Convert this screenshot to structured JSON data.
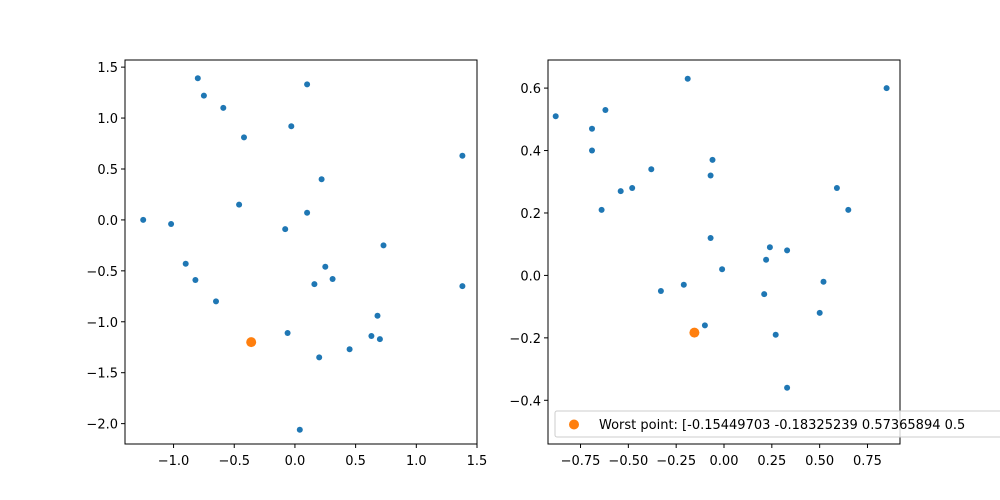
{
  "chart_data": [
    {
      "type": "scatter",
      "xlim": [
        -1.4,
        1.5
      ],
      "ylim": [
        -2.2,
        1.57
      ],
      "x_ticks": [
        -1.0,
        -0.5,
        0.0,
        0.5,
        1.0,
        1.5
      ],
      "x_tick_labels": [
        "−1.0",
        "−0.5",
        "0.0",
        "0.5",
        "1.0",
        "1.5"
      ],
      "y_ticks": [
        -2.0,
        -1.5,
        -1.0,
        -0.5,
        0.0,
        0.5,
        1.0,
        1.5
      ],
      "y_tick_labels": [
        "−2.0",
        "−1.5",
        "−1.0",
        "−0.5",
        "0.0",
        "0.5",
        "1.0",
        "1.5"
      ],
      "grid": false,
      "series": [
        {
          "color": "#1f77b4",
          "marker_size": 3,
          "points": [
            [
              -0.8,
              1.39
            ],
            [
              -0.75,
              1.22
            ],
            [
              -0.59,
              1.1
            ],
            [
              0.1,
              1.33
            ],
            [
              -0.42,
              0.81
            ],
            [
              -0.03,
              0.92
            ],
            [
              1.38,
              0.63
            ],
            [
              0.22,
              0.4
            ],
            [
              -1.25,
              0.0
            ],
            [
              -1.02,
              -0.04
            ],
            [
              -0.46,
              0.15
            ],
            [
              0.1,
              0.07
            ],
            [
              -0.08,
              -0.09
            ],
            [
              0.73,
              -0.25
            ],
            [
              -0.9,
              -0.43
            ],
            [
              0.25,
              -0.46
            ],
            [
              -0.82,
              -0.59
            ],
            [
              0.31,
              -0.58
            ],
            [
              0.16,
              -0.63
            ],
            [
              1.38,
              -0.65
            ],
            [
              -0.65,
              -0.8
            ],
            [
              0.68,
              -0.94
            ],
            [
              -0.06,
              -1.11
            ],
            [
              0.63,
              -1.14
            ],
            [
              0.7,
              -1.17
            ],
            [
              0.2,
              -1.35
            ],
            [
              0.45,
              -1.27
            ],
            [
              0.04,
              -2.06
            ]
          ]
        },
        {
          "color": "#ff7f0e",
          "marker_size": 5,
          "points": [
            [
              -0.36,
              -1.2
            ]
          ]
        }
      ]
    },
    {
      "type": "scatter",
      "xlim": [
        -0.92,
        0.92
      ],
      "ylim": [
        -0.54,
        0.69
      ],
      "x_ticks": [
        -0.75,
        -0.5,
        -0.25,
        0.0,
        0.25,
        0.5,
        0.75
      ],
      "x_tick_labels": [
        "−0.75",
        "−0.50",
        "−0.25",
        "0.00",
        "0.25",
        "0.50",
        "0.75"
      ],
      "y_ticks": [
        -0.4,
        -0.2,
        0.0,
        0.2,
        0.4,
        0.6
      ],
      "y_tick_labels": [
        "−0.4",
        "−0.2",
        "0.0",
        "0.2",
        "0.4",
        "0.6"
      ],
      "grid": false,
      "legend": {
        "placement": "lower-left",
        "entries": [
          {
            "label": "Worst point: [-0.15449703 -0.18325239  0.57365894  0.5",
            "color": "#ff7f0e"
          }
        ]
      },
      "series": [
        {
          "color": "#1f77b4",
          "marker_size": 3,
          "points": [
            [
              -0.88,
              0.51
            ],
            [
              -0.19,
              0.63
            ],
            [
              0.85,
              0.6
            ],
            [
              -0.62,
              0.53
            ],
            [
              -0.69,
              0.47
            ],
            [
              -0.69,
              0.4
            ],
            [
              -0.06,
              0.37
            ],
            [
              -0.07,
              0.32
            ],
            [
              -0.38,
              0.34
            ],
            [
              -0.48,
              0.28
            ],
            [
              -0.54,
              0.27
            ],
            [
              0.59,
              0.28
            ],
            [
              -0.64,
              0.21
            ],
            [
              0.65,
              0.21
            ],
            [
              -0.07,
              0.12
            ],
            [
              0.24,
              0.09
            ],
            [
              0.33,
              0.08
            ],
            [
              0.22,
              0.05
            ],
            [
              -0.01,
              0.02
            ],
            [
              -0.21,
              -0.03
            ],
            [
              0.52,
              -0.02
            ],
            [
              -0.33,
              -0.05
            ],
            [
              0.21,
              -0.06
            ],
            [
              0.5,
              -0.12
            ],
            [
              -0.1,
              -0.16
            ],
            [
              0.27,
              -0.19
            ],
            [
              0.33,
              -0.36
            ]
          ]
        },
        {
          "color": "#ff7f0e",
          "marker_size": 5,
          "points": [
            [
              -0.15449703,
              -0.18325239
            ]
          ]
        }
      ]
    }
  ]
}
